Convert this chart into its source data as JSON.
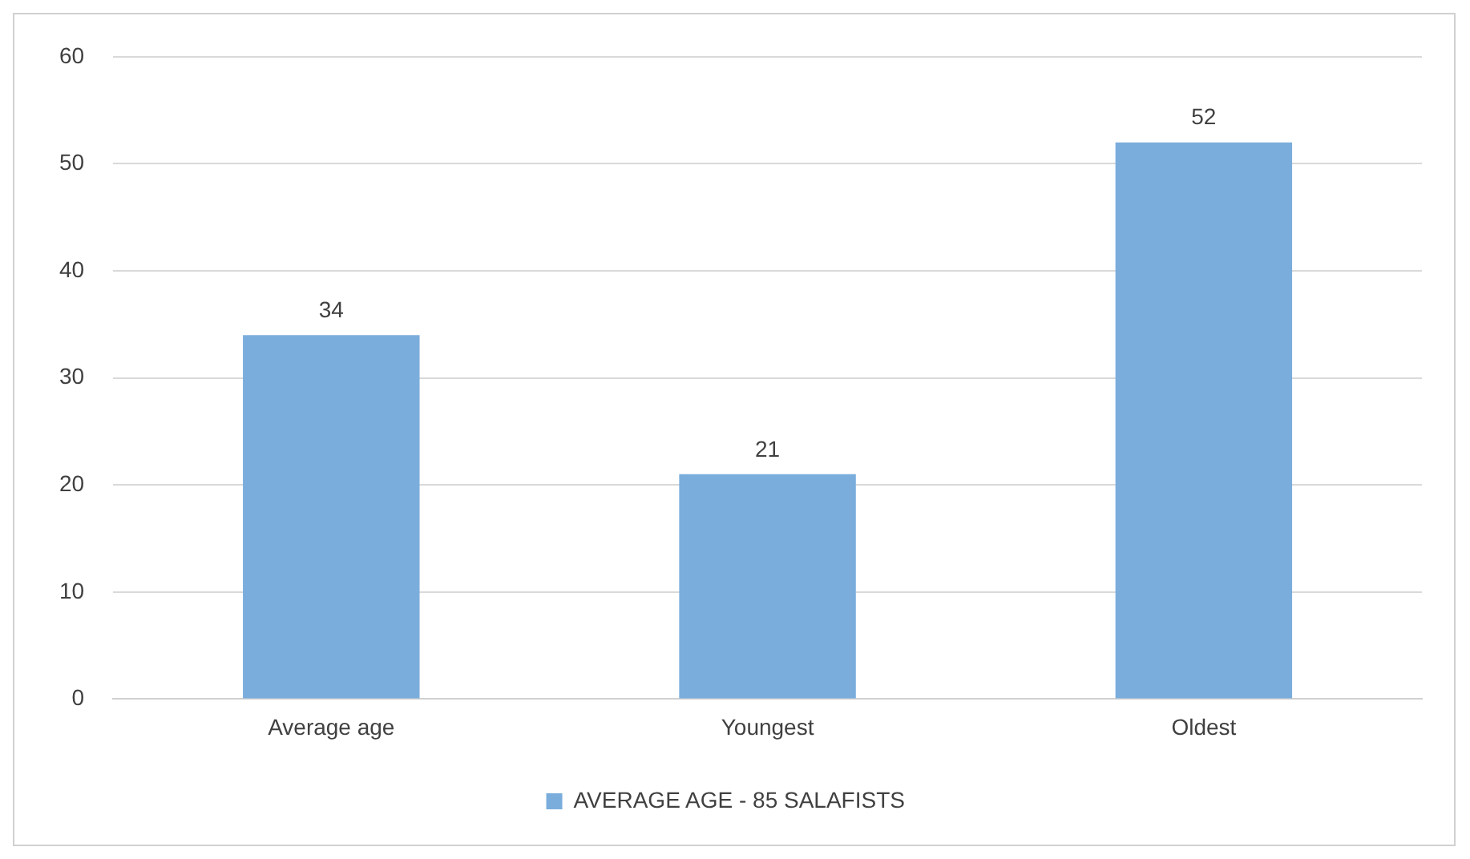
{
  "chart_data": {
    "type": "bar",
    "categories": [
      "Average age",
      "Youngest",
      "Oldest"
    ],
    "series": [
      {
        "name": "AVERAGE AGE - 85 SALAFISTS",
        "color": "#7aaddc",
        "values": [
          34,
          21,
          52
        ]
      }
    ],
    "ylim": [
      0,
      60
    ],
    "yticks": [
      0,
      10,
      20,
      30,
      40,
      50,
      60
    ],
    "grid": "y",
    "legend": "bottom",
    "data_labels": true
  }
}
